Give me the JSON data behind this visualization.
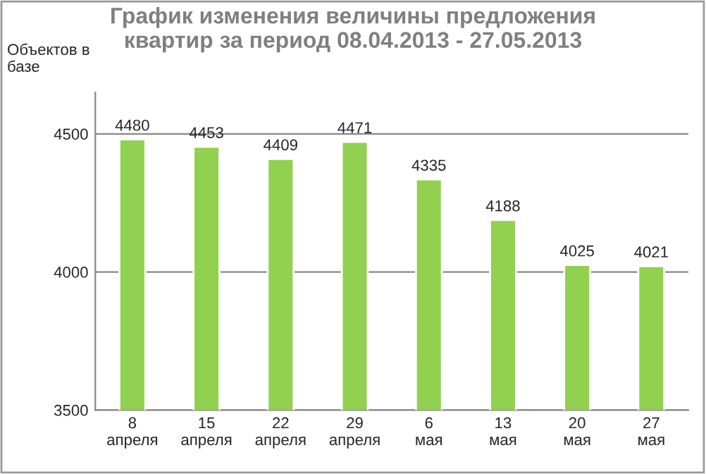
{
  "chart_data": {
    "type": "bar",
    "title": "График изменения величины предложения\nквартир за период 08.04.2013 - 27.05.2013",
    "ylabel": "Объектов в\nбазе",
    "categories": [
      "8\nапреля",
      "15\nапреля",
      "22\nапреля",
      "29\nапреля",
      "6\nмая",
      "13\nмая",
      "20\nмая",
      "27\nмая"
    ],
    "values": [
      4480,
      4453,
      4409,
      4471,
      4335,
      4188,
      4025,
      4021
    ],
    "color": "#92d050",
    "ylim": [
      3500,
      4650
    ],
    "yticks": [
      3500,
      4000,
      4500
    ],
    "grid": "y",
    "data_labels": true
  }
}
